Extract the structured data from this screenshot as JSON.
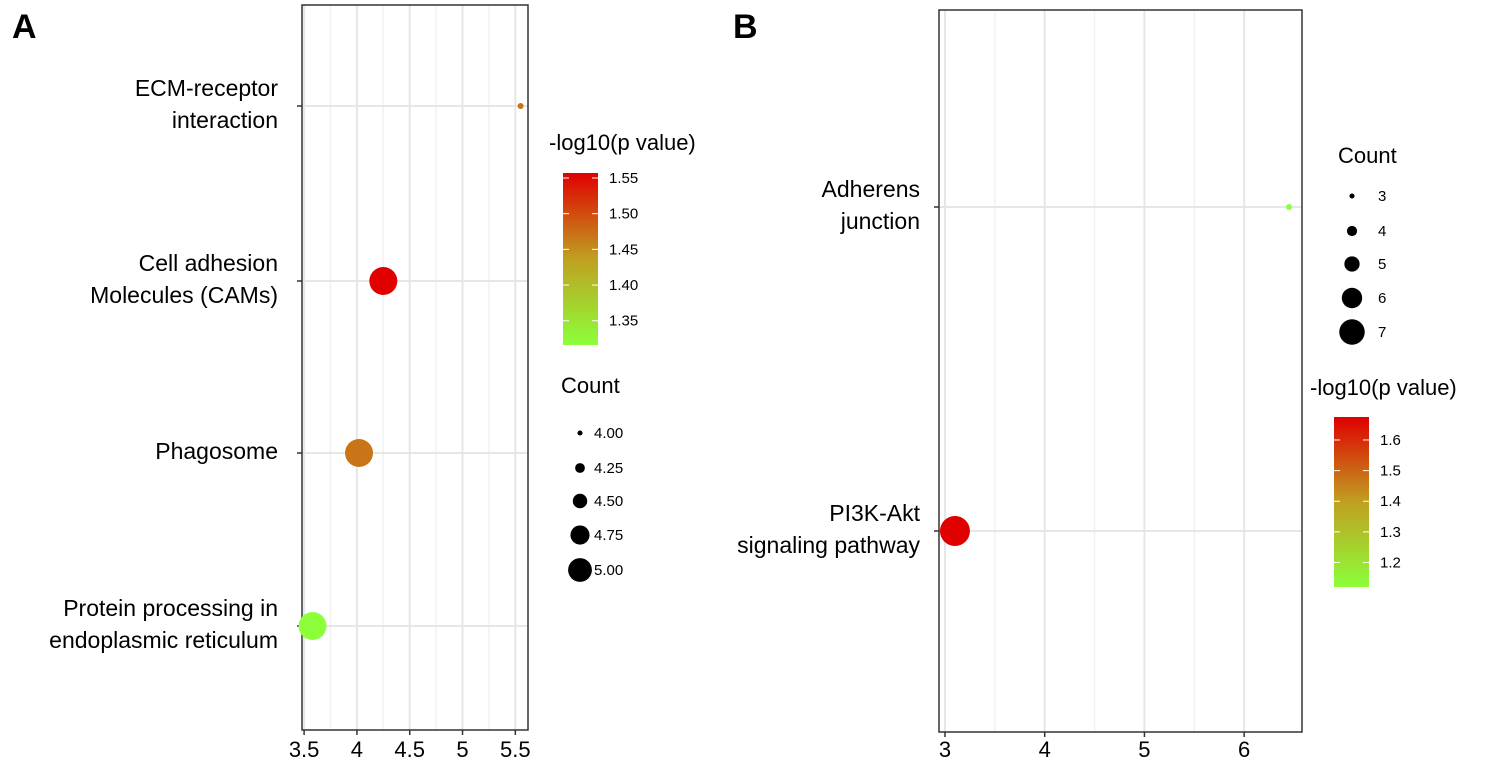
{
  "chart_data": [
    {
      "type": "scatter",
      "panel_label": "A",
      "title": "",
      "xlabel": "",
      "ylabel": "",
      "xlim": [
        3.48,
        5.62
      ],
      "xticks": [
        3.5,
        4,
        4.5,
        5,
        5.5
      ],
      "xtick_labels": [
        "3.5",
        "4",
        "4.5",
        "5",
        "5.5"
      ],
      "grid": true,
      "categories": [
        [
          "ECM-receptor",
          "interaction"
        ],
        [
          "Cell adhesion",
          "Molecules (CAMs)"
        ],
        [
          "Phagosome"
        ],
        [
          "Protein processing in",
          "endoplasmic reticulum"
        ]
      ],
      "points": [
        {
          "x": 5.55,
          "count": 4,
          "neg_log10_p": 1.47
        },
        {
          "x": 4.25,
          "count": 5,
          "neg_log10_p": 1.557
        },
        {
          "x": 4.02,
          "count": 5,
          "neg_log10_p": 1.47
        },
        {
          "x": 3.58,
          "count": 5,
          "neg_log10_p": 1.316
        }
      ],
      "color_legend": {
        "title": "-log10(p value)",
        "range": [
          1.316,
          1.557
        ],
        "ticks": [
          1.55,
          1.5,
          1.45,
          1.4,
          1.35
        ],
        "tick_labels": [
          "1.55",
          "1.50",
          "1.45",
          "1.40",
          "1.35"
        ],
        "low_color": "#8cff3a",
        "high_color": "#e00000"
      },
      "size_legend": {
        "title": "Count",
        "values": [
          4.0,
          4.25,
          4.5,
          4.75,
          5.0
        ],
        "labels": [
          "4.00",
          "4.25",
          "4.50",
          "4.75",
          "5.00"
        ]
      },
      "legend_position": "right"
    },
    {
      "type": "scatter",
      "panel_label": "B",
      "title": "",
      "xlabel": "",
      "ylabel": "",
      "xlim": [
        2.94,
        6.58
      ],
      "xticks": [
        3,
        4,
        5,
        6
      ],
      "xtick_labels": [
        "3",
        "4",
        "5",
        "6"
      ],
      "grid": true,
      "categories": [
        [
          "Adherens",
          "junction"
        ],
        [
          "PI3K-Akt",
          "signaling pathway"
        ]
      ],
      "points": [
        {
          "x": 6.45,
          "count": 3,
          "neg_log10_p": 1.12
        },
        {
          "x": 3.1,
          "count": 7,
          "neg_log10_p": 1.675
        }
      ],
      "color_legend": {
        "title": "-log10(p value)",
        "range": [
          1.12,
          1.675
        ],
        "ticks": [
          1.6,
          1.5,
          1.4,
          1.3,
          1.2
        ],
        "tick_labels": [
          "1.6",
          "1.5",
          "1.4",
          "1.3",
          "1.2"
        ],
        "low_color": "#8cff3a",
        "high_color": "#e00000"
      },
      "size_legend": {
        "title": "Count",
        "values": [
          3,
          4,
          5,
          6,
          7
        ],
        "labels": [
          "3",
          "4",
          "5",
          "6",
          "7"
        ]
      },
      "legend_position": "right"
    }
  ]
}
